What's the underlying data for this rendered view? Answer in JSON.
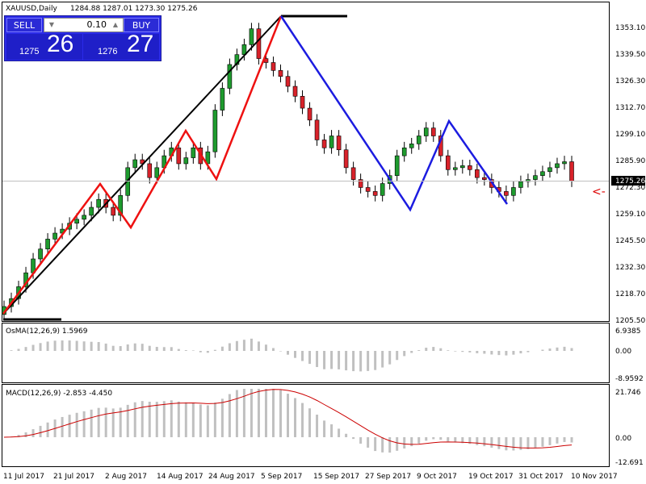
{
  "header": {
    "symbol": "XAUUSD,Daily",
    "ohlc": "1284.88 1287.01 1273.30 1275.26"
  },
  "trade_panel": {
    "sell_label": "SELL",
    "buy_label": "BUY",
    "lot": "0.10",
    "sell_small": "1275",
    "sell_big": "26",
    "buy_small": "1276",
    "buy_big": "27"
  },
  "current_price": "1275.26",
  "price_axis": [
    "1353.10",
    "1339.50",
    "1326.30",
    "1312.70",
    "1299.10",
    "1285.90",
    "1272.30",
    "1259.10",
    "1245.50",
    "1232.30",
    "1218.70",
    "1205.50"
  ],
  "osma": {
    "label": "OsMA(12,26,9) 1.5969",
    "ticks": [
      "6.9385",
      "0.00",
      "-8.9592"
    ]
  },
  "macd": {
    "label": "MACD(12,26,9) -2.853 -4.450",
    "ticks": [
      "21.746",
      "0.00",
      "-12.691"
    ]
  },
  "time_axis": [
    "11 Jul 2017",
    "21 Jul 2017",
    "2 Aug 2017",
    "14 Aug 2017",
    "24 Aug 2017",
    "5 Sep 2017",
    "15 Sep 2017",
    "27 Sep 2017",
    "9 Oct 2017",
    "19 Oct 2017",
    "31 Oct 2017",
    "10 Nov 2017"
  ],
  "colors": {
    "bull": "#1e9b2e",
    "bear": "#d8222a",
    "zigzag_red": "#ee1111",
    "zigzag_blue": "#1c1ce0",
    "trend": "#000000",
    "macd_signal": "#cc0000",
    "histogram": "#c0c0c0"
  },
  "chart_data": {
    "type": "candlestick",
    "close_series": [
      1212,
      1216,
      1222,
      1229,
      1236,
      1241,
      1246,
      1249,
      1251,
      1254,
      1256,
      1258,
      1262,
      1266,
      1262,
      1258,
      1268,
      1282,
      1286,
      1284,
      1277,
      1282,
      1288,
      1292,
      1284,
      1287,
      1292,
      1284,
      1290,
      1311,
      1322,
      1334,
      1339,
      1344,
      1352,
      1337,
      1335,
      1331,
      1328,
      1323,
      1318,
      1312,
      1306,
      1296,
      1292,
      1298,
      1291,
      1282,
      1276,
      1272,
      1270,
      1268,
      1274,
      1278,
      1288,
      1292,
      1294,
      1298,
      1302,
      1298,
      1288,
      1281,
      1282,
      1283,
      1281,
      1277,
      1276,
      1272,
      1270,
      1268,
      1272,
      1275,
      1276,
      1278,
      1280,
      1282,
      1284,
      1285,
      1275.26
    ],
    "overlays": [
      "black trendline",
      "red zigzag",
      "blue zigzag"
    ],
    "indicators": [
      "OsMA(12,26,9)",
      "MACD(12,26,9)"
    ]
  }
}
